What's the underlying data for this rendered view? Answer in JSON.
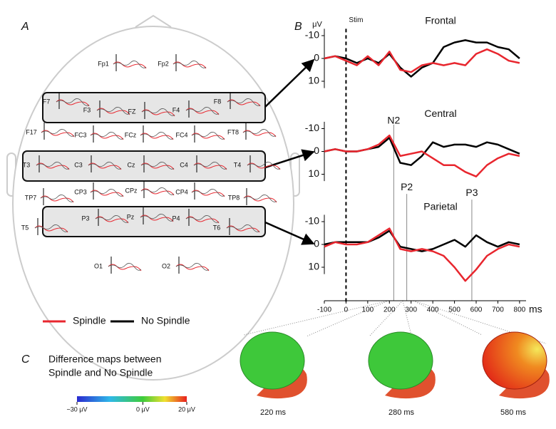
{
  "panels": {
    "a": {
      "letter": "A",
      "electrodes": [
        "Fp1",
        "Fp2",
        "F7",
        "F3",
        "FZ",
        "F4",
        "F8",
        "F17",
        "FC3",
        "FCz",
        "FC4",
        "FT8",
        "T3",
        "C3",
        "Cz",
        "C4",
        "T4",
        "TP7",
        "CP3",
        "CPz",
        "CP4",
        "TP8",
        "T5",
        "P3",
        "Pz",
        "P4",
        "T6",
        "O1",
        "O2"
      ]
    },
    "b": {
      "letter": "B"
    },
    "c": {
      "letter": "C",
      "caption": [
        "Difference maps between",
        "Spindle and No Spindle"
      ],
      "colorbar": {
        "lim": [
          -30,
          20
        ],
        "ticks": [
          {
            "value": -30,
            "label": "−30 μV"
          },
          {
            "value": 0,
            "label": "0 μV"
          },
          {
            "value": 20,
            "label": "20 μV"
          }
        ]
      },
      "maps": [
        "220 ms",
        "280 ms",
        "580 ms"
      ]
    }
  },
  "chart_data": [
    {
      "type": "line",
      "title": "Frontal",
      "ylabel": "μV",
      "x": [
        -100,
        -50,
        0,
        50,
        100,
        150,
        200,
        250,
        300,
        350,
        400,
        450,
        500,
        550,
        600,
        650,
        700,
        750,
        800
      ],
      "series": [
        {
          "name": "Spindle",
          "color": "#e8262e",
          "values": [
            0,
            -1,
            1,
            3,
            -1,
            3,
            -3,
            5,
            6,
            3,
            2,
            3,
            2,
            3,
            -2,
            -4,
            -2,
            1,
            2
          ]
        },
        {
          "name": "No Spindle",
          "color": "#000000",
          "values": [
            0,
            -1,
            0,
            2,
            0,
            2,
            -2,
            4,
            8,
            4,
            2,
            -5,
            -7,
            -8,
            -7,
            -7,
            -5,
            -4,
            0
          ]
        }
      ],
      "xlim": [
        -100,
        830
      ],
      "ylim": [
        -13,
        13
      ],
      "yticks": [
        -10,
        0,
        10
      ],
      "y_inverted": true,
      "annotations": [
        {
          "x": 0,
          "label": "Stim"
        }
      ]
    },
    {
      "type": "line",
      "title": "Central",
      "x": [
        -100,
        -50,
        0,
        50,
        100,
        150,
        200,
        250,
        300,
        350,
        400,
        450,
        500,
        550,
        600,
        650,
        700,
        750,
        800
      ],
      "series": [
        {
          "name": "Spindle",
          "color": "#e8262e",
          "values": [
            0,
            -1,
            0,
            0,
            -1,
            -3,
            -7,
            2,
            1,
            0,
            3,
            6,
            6,
            9,
            11,
            6,
            3,
            1,
            2
          ]
        },
        {
          "name": "No Spindle",
          "color": "#000000",
          "values": [
            0,
            -1,
            0,
            0,
            -1,
            -2,
            -6,
            5,
            6,
            2,
            -4,
            -2,
            -3,
            -3,
            -2,
            -4,
            -3,
            -1,
            1
          ]
        }
      ],
      "xlim": [
        -100,
        830
      ],
      "ylim": [
        -13,
        13
      ],
      "yticks": [
        -10,
        0,
        10
      ],
      "y_inverted": true,
      "annotations": [
        {
          "x": 220,
          "label": "N2"
        },
        {
          "x": 280,
          "label": "P2"
        },
        {
          "x": 580,
          "label": "P3"
        }
      ]
    },
    {
      "type": "line",
      "title": "Parietal",
      "xlabel": "ms",
      "x": [
        -100,
        -50,
        0,
        50,
        100,
        150,
        200,
        250,
        300,
        350,
        400,
        450,
        500,
        550,
        600,
        650,
        700,
        750,
        800
      ],
      "series": [
        {
          "name": "Spindle",
          "color": "#e8262e",
          "values": [
            1,
            -1,
            0,
            0,
            -1,
            -4,
            -7,
            2,
            3,
            2,
            3,
            5,
            10,
            16,
            11,
            5,
            2,
            0,
            1
          ]
        },
        {
          "name": "No Spindle",
          "color": "#000000",
          "values": [
            0,
            -1,
            -1,
            -1,
            -1,
            -3,
            -6,
            1,
            2,
            3,
            2,
            0,
            -2,
            1,
            -4,
            -1,
            1,
            -1,
            0
          ]
        }
      ],
      "xlim": [
        -100,
        830
      ],
      "ylim": [
        -13,
        13
      ],
      "yticks": [
        -10,
        0,
        10
      ],
      "y_inverted": true,
      "xticks": [
        -100,
        0,
        100,
        200,
        300,
        400,
        500,
        600,
        700,
        800
      ]
    }
  ]
}
